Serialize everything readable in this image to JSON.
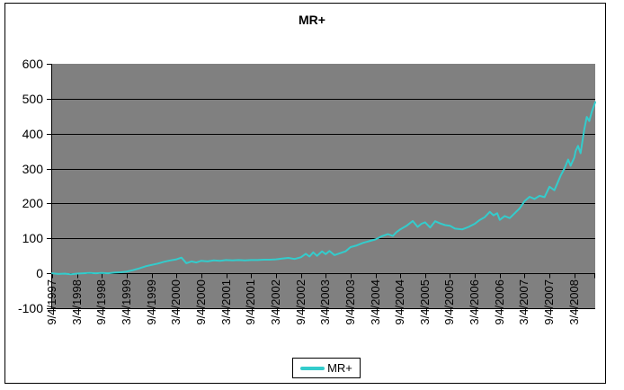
{
  "chart_data": {
    "type": "line",
    "title": "MR+",
    "colors": {
      "series": "#33CCCC",
      "plot_bg": "#808080",
      "grid": "#000000",
      "axis": "#000000",
      "text": "#000000",
      "background": "#FFFFFF"
    },
    "ylim": [
      -100,
      600
    ],
    "y_ticks": [
      600,
      500,
      400,
      300,
      200,
      100,
      0,
      -100
    ],
    "gridlines": "horizontal-major",
    "x_tick_labels": [
      "9/4/1997",
      "3/4/1998",
      "9/4/1998",
      "3/4/1999",
      "9/4/1999",
      "3/4/2000",
      "9/4/2000",
      "3/4/2001",
      "9/4/2001",
      "3/4/2002",
      "9/4/2002",
      "3/4/2003",
      "9/4/2003",
      "3/4/2004",
      "9/4/2004",
      "3/4/2005",
      "9/4/2005",
      "3/4/2006",
      "9/4/2006",
      "3/4/2007",
      "9/4/2007",
      "3/4/2008"
    ],
    "x_index_range": [
      0,
      21.84
    ],
    "legend": {
      "position": "bottom-center",
      "entries": [
        {
          "label": "MR+",
          "swatch": "line"
        }
      ]
    },
    "series": [
      {
        "name": "MR+",
        "points": [
          [
            0,
            0
          ],
          [
            0.25,
            -2
          ],
          [
            0.5,
            -1
          ],
          [
            0.75,
            -3
          ],
          [
            1,
            -1
          ],
          [
            1.25,
            0
          ],
          [
            1.5,
            1
          ],
          [
            1.75,
            0
          ],
          [
            2,
            1
          ],
          [
            2.25,
            0
          ],
          [
            2.5,
            2
          ],
          [
            2.75,
            3
          ],
          [
            3,
            5
          ],
          [
            3.25,
            9
          ],
          [
            3.5,
            14
          ],
          [
            3.75,
            20
          ],
          [
            4,
            24
          ],
          [
            4.25,
            28
          ],
          [
            4.5,
            33
          ],
          [
            4.75,
            37
          ],
          [
            5,
            40
          ],
          [
            5.2,
            45
          ],
          [
            5.4,
            29
          ],
          [
            5.6,
            34
          ],
          [
            5.8,
            31
          ],
          [
            6,
            36
          ],
          [
            6.25,
            34
          ],
          [
            6.5,
            37
          ],
          [
            6.75,
            36
          ],
          [
            7,
            38
          ],
          [
            7.25,
            37
          ],
          [
            7.5,
            38
          ],
          [
            7.75,
            37
          ],
          [
            8,
            38
          ],
          [
            8.25,
            38
          ],
          [
            8.5,
            39
          ],
          [
            8.75,
            39
          ],
          [
            9,
            40
          ],
          [
            9.25,
            42
          ],
          [
            9.5,
            44
          ],
          [
            9.75,
            41
          ],
          [
            10,
            46
          ],
          [
            10.2,
            56
          ],
          [
            10.35,
            48
          ],
          [
            10.5,
            60
          ],
          [
            10.65,
            50
          ],
          [
            10.85,
            63
          ],
          [
            11,
            55
          ],
          [
            11.15,
            64
          ],
          [
            11.35,
            52
          ],
          [
            11.6,
            58
          ],
          [
            11.8,
            63
          ],
          [
            12,
            75
          ],
          [
            12.25,
            80
          ],
          [
            12.5,
            87
          ],
          [
            12.75,
            92
          ],
          [
            13,
            97
          ],
          [
            13.25,
            106
          ],
          [
            13.5,
            112
          ],
          [
            13.7,
            107
          ],
          [
            13.85,
            118
          ],
          [
            14,
            126
          ],
          [
            14.25,
            136
          ],
          [
            14.5,
            150
          ],
          [
            14.7,
            133
          ],
          [
            14.85,
            142
          ],
          [
            15,
            146
          ],
          [
            15.2,
            131
          ],
          [
            15.4,
            149
          ],
          [
            15.6,
            143
          ],
          [
            15.8,
            138
          ],
          [
            16,
            136
          ],
          [
            16.2,
            128
          ],
          [
            16.5,
            126
          ],
          [
            16.75,
            133
          ],
          [
            17,
            142
          ],
          [
            17.2,
            153
          ],
          [
            17.4,
            161
          ],
          [
            17.6,
            176
          ],
          [
            17.75,
            166
          ],
          [
            17.9,
            172
          ],
          [
            18,
            153
          ],
          [
            18.2,
            164
          ],
          [
            18.4,
            158
          ],
          [
            18.6,
            172
          ],
          [
            18.8,
            186
          ],
          [
            19,
            207
          ],
          [
            19.2,
            219
          ],
          [
            19.4,
            213
          ],
          [
            19.6,
            222
          ],
          [
            19.8,
            218
          ],
          [
            20,
            248
          ],
          [
            20.2,
            238
          ],
          [
            20.45,
            280
          ],
          [
            20.6,
            300
          ],
          [
            20.75,
            326
          ],
          [
            20.85,
            308
          ],
          [
            21,
            332
          ],
          [
            21.05,
            350
          ],
          [
            21.15,
            365
          ],
          [
            21.25,
            344
          ],
          [
            21.4,
            412
          ],
          [
            21.5,
            448
          ],
          [
            21.6,
            436
          ],
          [
            21.7,
            462
          ],
          [
            21.84,
            490
          ]
        ]
      }
    ]
  }
}
